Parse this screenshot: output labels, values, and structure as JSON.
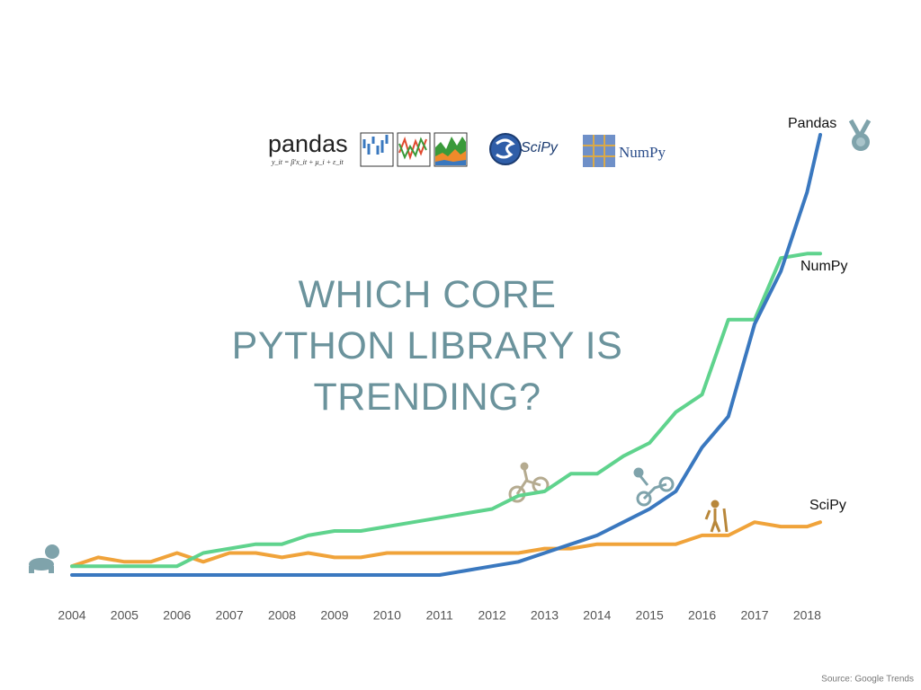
{
  "chart_data": {
    "type": "line",
    "title": "WHICH CORE PYTHON LIBRARY IS TRENDING?",
    "logos": {
      "pandas": "pandas",
      "pandas_formula": "y_it = β′x_it + μ_i + ε_it",
      "scipy": "SciPy",
      "numpy": "NumPy"
    },
    "source": "Source: Google Trends",
    "x": [
      2004,
      2004.5,
      2005,
      2005.5,
      2006,
      2006.5,
      2007,
      2007.5,
      2008,
      2008.5,
      2009,
      2009.5,
      2010,
      2010.5,
      2011,
      2011.5,
      2012,
      2012.5,
      2013,
      2013.5,
      2014,
      2014.5,
      2015,
      2015.5,
      2016,
      2016.5,
      2017,
      2017.5,
      2018,
      2018.25
    ],
    "xlim": [
      2004,
      2018.25
    ],
    "xticks": [
      2004,
      2005,
      2006,
      2007,
      2008,
      2009,
      2010,
      2011,
      2012,
      2013,
      2014,
      2015,
      2016,
      2017,
      2018
    ],
    "ylim": [
      0,
      100
    ],
    "series": [
      {
        "name": "Pandas",
        "color": "#3a78bf",
        "values": [
          0,
          0,
          0,
          0,
          0,
          0,
          0,
          0,
          0,
          0,
          0,
          0,
          0,
          0,
          0,
          1,
          2,
          3,
          5,
          7,
          9,
          12,
          15,
          19,
          29,
          36,
          57,
          69,
          87,
          100
        ]
      },
      {
        "name": "NumPy",
        "color": "#5fd38d",
        "values": [
          2,
          2,
          2,
          2,
          2,
          5,
          6,
          7,
          7,
          9,
          10,
          10,
          11,
          12,
          13,
          14,
          15,
          18,
          19,
          23,
          23,
          27,
          30,
          37,
          41,
          58,
          58,
          72,
          73,
          73
        ]
      },
      {
        "name": "SciPy",
        "color": "#f0a33a",
        "values": [
          2,
          4,
          3,
          3,
          5,
          3,
          5,
          5,
          4,
          5,
          4,
          4,
          5,
          5,
          5,
          5,
          5,
          5,
          6,
          6,
          7,
          7,
          7,
          7,
          9,
          9,
          12,
          11,
          11,
          12
        ]
      }
    ]
  }
}
